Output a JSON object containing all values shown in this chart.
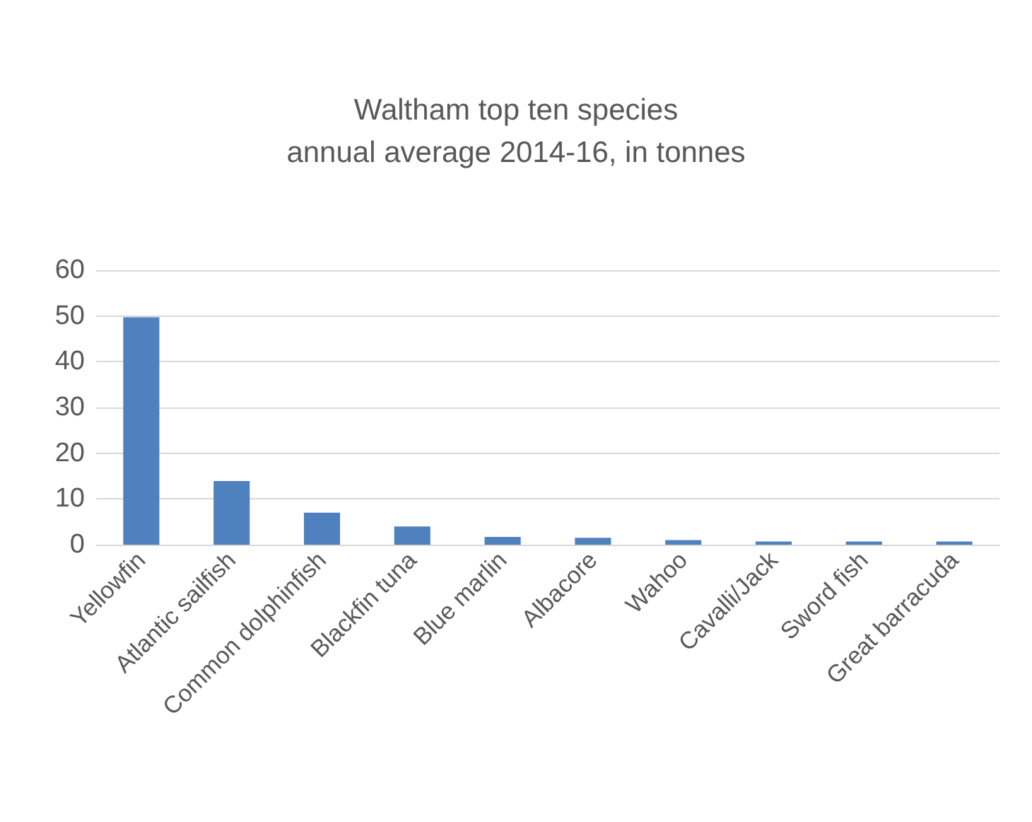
{
  "chart_data": {
    "type": "bar",
    "title": "Waltham top ten species\nannual average 2014-16, in tonnes",
    "categories": [
      "Yellowfin",
      "Atlantic sailfish",
      "Common dolphinfish",
      "Blackfin tuna",
      "Blue marlin",
      "Albacore",
      "Wahoo",
      "Cavalli/Jack",
      "Sword fish",
      "Great barracuda"
    ],
    "values": [
      49.7,
      13.9,
      7,
      4,
      1.7,
      1.5,
      1,
      0.7,
      0.7,
      0.7
    ],
    "color": "#4e81bd",
    "ylim": [
      0,
      60
    ],
    "yticks": [
      0,
      10,
      20,
      30,
      40,
      50,
      60
    ],
    "grid": "y"
  }
}
